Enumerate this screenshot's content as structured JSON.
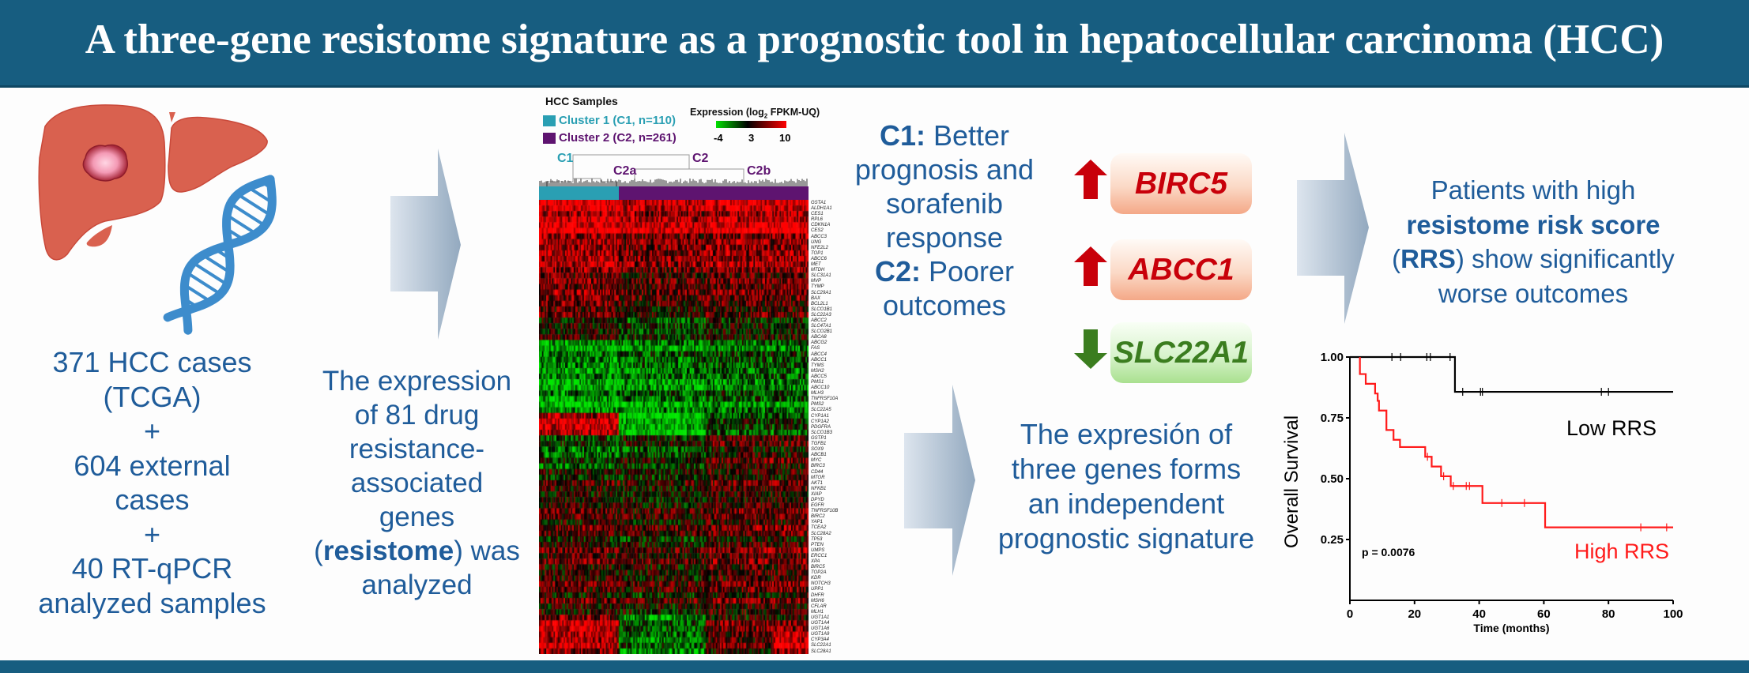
{
  "title": "A three-gene resistome signature as a prognostic tool in hepatocellular carcinoma (HCC)",
  "icons": {
    "organ": "liver-with-tumor-icon",
    "molecule": "dna-helix-icon",
    "flow": "arrow-right-icon"
  },
  "colors": {
    "title_bar": "#175d80",
    "text": "#1f5c9a",
    "cluster1": "#2a9fb3",
    "cluster2": "#5e1470",
    "up": "#c8000a",
    "down": "#3b7d1f",
    "low_rrs": "#000000",
    "high_rrs": "#ff1a1a"
  },
  "cohort_text": [
    [
      {
        "text": "371 HCC cases"
      }
    ],
    [
      {
        "text": "(TCGA)"
      }
    ],
    [
      {
        "text": "+"
      }
    ],
    [
      {
        "text": "604 external"
      }
    ],
    [
      {
        "text": "cases"
      }
    ],
    [
      {
        "text": "+"
      }
    ],
    [
      {
        "text": "40 RT-qPCR"
      }
    ],
    [
      {
        "text": "analyzed samples"
      }
    ]
  ],
  "resistome_text": [
    [
      {
        "text": "The expression"
      }
    ],
    [
      {
        "text": "of 81 drug"
      }
    ],
    [
      {
        "text": "resistance-"
      }
    ],
    [
      {
        "text": "associated"
      }
    ],
    [
      {
        "text": "genes"
      }
    ],
    [
      {
        "text": "("
      },
      {
        "text": "resistome",
        "bold": true
      },
      {
        "text": ") was"
      }
    ],
    [
      {
        "text": "analyzed"
      }
    ]
  ],
  "heatmap": {
    "header": "HCC Samples",
    "clusters": [
      {
        "label": "Cluster 1 (C1, n=110)",
        "color": "#2a9fb3",
        "n": 110
      },
      {
        "label": "Cluster 2 (C2, n=261)",
        "color": "#5e1470",
        "n": 261
      }
    ],
    "legend": {
      "title_pre": "Expression (log",
      "title_sub": "2",
      "title_post": " FPKM-UQ)",
      "ticks": [
        "-4",
        "3",
        "10"
      ],
      "low_color": "#00e000",
      "mid_color": "#000000",
      "high_color": "#ff0000"
    },
    "dendrogram": {
      "c1": "C1",
      "c2": "C2",
      "c2a": "C2a",
      "c2b": "C2b"
    },
    "genes": [
      "GSTA1",
      "ALDH1A1",
      "CES1",
      "RPL6",
      "CDKN1A",
      "CES2",
      "ABCC3",
      "UNG",
      "NFE2L2",
      "TOP1",
      "ABCC6",
      "MET",
      "MTDH",
      "SLC31A1",
      "MVP",
      "TYMP",
      "SLC29A1",
      "BAX",
      "BCL2L1",
      "SLCO1B1",
      "SLC22A3",
      "ABCC2",
      "SLC47A1",
      "SLCO2B1",
      "ABCA8",
      "ABCG2",
      "FAS",
      "ABCC4",
      "ABCC1",
      "TYMS",
      "MSH2",
      "ABCC5",
      "PMS1",
      "ABCC10",
      "MLH3",
      "TNFRSF10A",
      "PMS2",
      "SLC22A5",
      "CYP1A1",
      "CYP1A2",
      "PDGFRA",
      "SLCO1B3",
      "GSTP1",
      "TGFB1",
      "SOX9",
      "ABCB1",
      "MYC",
      "BIRC3",
      "CD44",
      "MTOR",
      "AKT1",
      "NFKB1",
      "XIAP",
      "DPYD",
      "EGFR",
      "TNFRSF10B",
      "BIRC2",
      "YAP1",
      "TCEA2",
      "SLC28A2",
      "TP53",
      "PTEN",
      "UMPS",
      "ERCC1",
      "XPA",
      "BIRC5",
      "TOP2A",
      "KDR",
      "NOTCH3",
      "UPP1",
      "DHFR",
      "MSH6",
      "CFLAR",
      "MLH1",
      "UGT1A1",
      "UGT1A4",
      "UGT1A6",
      "UGT1A9",
      "CYP3A4",
      "SLC22A1",
      "SLC28A1"
    ]
  },
  "cluster_text": [
    [
      {
        "text": "C1:",
        "bold": true
      },
      {
        "text": " Better"
      }
    ],
    [
      {
        "text": "prognosis and"
      }
    ],
    [
      {
        "text": "sorafenib"
      }
    ],
    [
      {
        "text": "response"
      }
    ],
    [
      {
        "text": "C2:",
        "bold": true
      },
      {
        "text": " Poorer"
      }
    ],
    [
      {
        "text": "outcomes"
      }
    ]
  ],
  "signature_genes": [
    {
      "name": "BIRC5",
      "direction": "up",
      "icon": "arrow-up-icon"
    },
    {
      "name": "ABCC1",
      "direction": "up",
      "icon": "arrow-up-icon"
    },
    {
      "name": "SLC22A1",
      "direction": "down",
      "icon": "arrow-down-icon"
    }
  ],
  "signature_text": [
    [
      {
        "text": "The expresión of"
      }
    ],
    [
      {
        "text": "three genes forms"
      }
    ],
    [
      {
        "text": "an independent"
      }
    ],
    [
      {
        "text": "prognostic signature"
      }
    ]
  ],
  "outcome_text": [
    [
      {
        "text": "Patients with high"
      }
    ],
    [
      {
        "text": "resistome risk score",
        "bold": true
      }
    ],
    [
      {
        "text": "("
      },
      {
        "text": "RRS",
        "bold": true
      },
      {
        "text": ") show significantly"
      }
    ],
    [
      {
        "text": "worse outcomes"
      }
    ]
  ],
  "chart_data": {
    "type": "line",
    "subtype": "kaplan-meier step",
    "xlabel": "Time (months)",
    "ylabel": "Overall Survival",
    "xlim": [
      0,
      100
    ],
    "ylim": [
      0,
      1
    ],
    "xticks": [
      "0",
      "20",
      "40",
      "60",
      "80",
      "100"
    ],
    "yticks": [
      "0.25",
      "0.50",
      "0.75",
      "1.00"
    ],
    "grid": false,
    "annotation": "p = 0.0076",
    "series": [
      {
        "name": "Low RRS",
        "color": "#000000",
        "times": [
          0,
          32.5
        ],
        "survival": [
          1.0,
          0.857
        ],
        "censored": [
          13,
          15.7,
          23.8,
          24.9,
          31,
          34.9,
          40.4,
          41,
          77.8,
          80
        ]
      },
      {
        "name": "High RRS",
        "color": "#ff1a1a",
        "times": [
          3.1,
          4.9,
          7.8,
          8.6,
          9,
          11.3,
          13.5,
          15.5,
          23.3,
          25.3,
          28.2,
          31.2,
          41,
          60.4
        ],
        "survival": [
          0.93,
          0.89,
          0.85,
          0.82,
          0.78,
          0.7,
          0.66,
          0.63,
          0.59,
          0.55,
          0.51,
          0.47,
          0.4,
          0.3
        ],
        "start": 3.1,
        "censored": [
          24,
          29,
          32,
          36,
          37,
          47,
          54,
          90,
          98
        ]
      }
    ]
  }
}
